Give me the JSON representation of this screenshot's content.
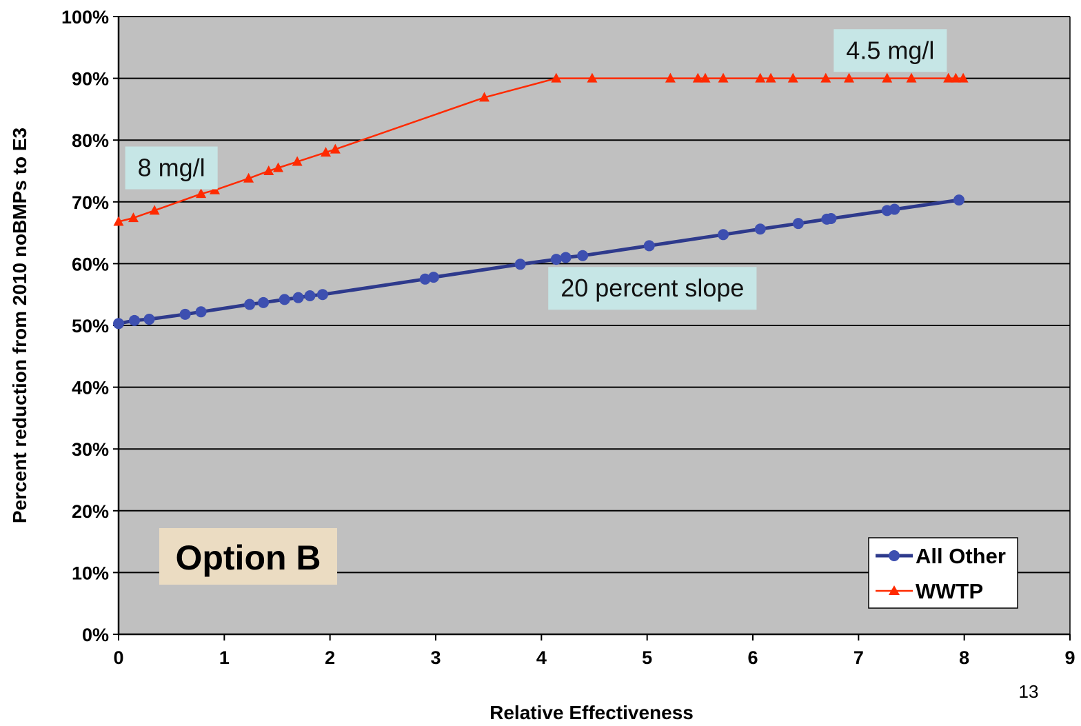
{
  "chart_data": {
    "type": "line",
    "title": "",
    "xlabel": "Relative Effectiveness",
    "ylabel": "Percent reduction from 2010 noBMPs to E3",
    "xlim": [
      0,
      9
    ],
    "ylim": [
      0,
      100
    ],
    "x_ticks": [
      "0",
      "1",
      "2",
      "3",
      "4",
      "5",
      "6",
      "7",
      "8",
      "9"
    ],
    "y_ticks": [
      "0%",
      "10%",
      "20%",
      "30%",
      "40%",
      "50%",
      "60%",
      "70%",
      "80%",
      "90%",
      "100%"
    ],
    "grid": "horizontal",
    "plot_background": "#c0c0c0",
    "legend_position": "bottom-right",
    "series": [
      {
        "name": "All Other",
        "color": "#2e3a8c",
        "marker": "circle",
        "points": [
          [
            0.0,
            50.3
          ],
          [
            0.15,
            50.8
          ],
          [
            0.29,
            51.0
          ],
          [
            0.63,
            51.8
          ],
          [
            0.78,
            52.2
          ],
          [
            1.24,
            53.4
          ],
          [
            1.37,
            53.7
          ],
          [
            1.57,
            54.2
          ],
          [
            1.7,
            54.5
          ],
          [
            1.81,
            54.8
          ],
          [
            1.93,
            55.0
          ],
          [
            2.9,
            57.5
          ],
          [
            2.98,
            57.8
          ],
          [
            3.8,
            59.9
          ],
          [
            4.14,
            60.7
          ],
          [
            4.23,
            61.0
          ],
          [
            4.39,
            61.3
          ],
          [
            5.02,
            62.9
          ],
          [
            5.72,
            64.7
          ],
          [
            6.07,
            65.6
          ],
          [
            6.43,
            66.5
          ],
          [
            6.7,
            67.2
          ],
          [
            6.74,
            67.3
          ],
          [
            7.27,
            68.6
          ],
          [
            7.34,
            68.8
          ],
          [
            7.95,
            70.3
          ]
        ]
      },
      {
        "name": "WWTP",
        "color": "#ff2a00",
        "marker": "triangle",
        "points": [
          [
            0.0,
            66.8
          ],
          [
            0.14,
            67.4
          ],
          [
            0.34,
            68.6
          ],
          [
            0.78,
            71.3
          ],
          [
            0.91,
            71.9
          ],
          [
            1.23,
            73.8
          ],
          [
            1.42,
            75.0
          ],
          [
            1.51,
            75.5
          ],
          [
            1.69,
            76.5
          ],
          [
            1.96,
            78.0
          ],
          [
            2.05,
            78.5
          ],
          [
            3.46,
            86.9
          ],
          [
            4.14,
            90.0
          ],
          [
            4.48,
            90.0
          ],
          [
            5.22,
            90.0
          ],
          [
            5.48,
            90.0
          ],
          [
            5.55,
            90.0
          ],
          [
            5.72,
            90.0
          ],
          [
            6.07,
            90.0
          ],
          [
            6.17,
            90.0
          ],
          [
            6.38,
            90.0
          ],
          [
            6.69,
            90.0
          ],
          [
            6.91,
            90.0
          ],
          [
            7.27,
            90.0
          ],
          [
            7.5,
            90.0
          ],
          [
            7.85,
            90.0
          ],
          [
            7.92,
            90.0
          ],
          [
            7.99,
            90.0
          ]
        ]
      }
    ],
    "annotations": [
      {
        "text": "4.5 mg/l",
        "x": 7.3,
        "y": 94.5
      },
      {
        "text": "8 mg/l",
        "x": 0.5,
        "y": 75.5
      },
      {
        "text": "20 percent slope",
        "x": 5.05,
        "y": 56.0
      }
    ],
    "option_label": "Option B",
    "page_number": "13"
  }
}
